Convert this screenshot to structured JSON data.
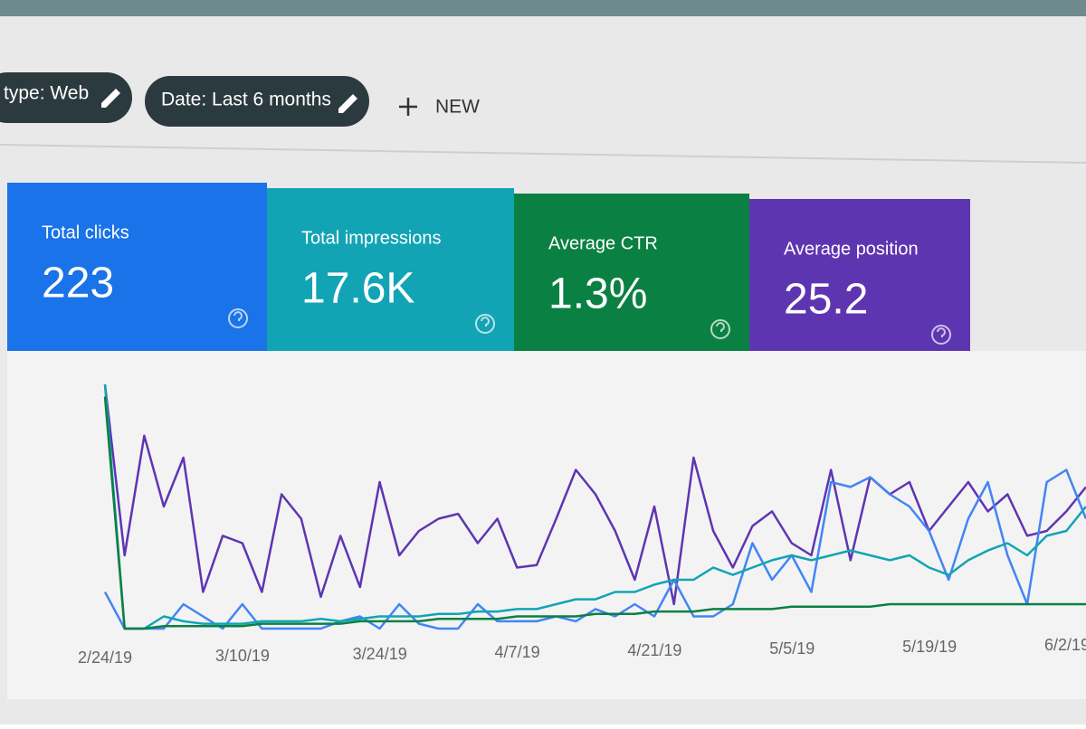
{
  "filters": [
    {
      "label": "type: Web"
    },
    {
      "label": "Date: Last 6 months"
    }
  ],
  "new_button": "NEW",
  "cards": [
    {
      "label": "Total clicks",
      "value": "223",
      "color": "#1a73e8"
    },
    {
      "label": "Total impressions",
      "value": "17.6K",
      "color": "#12a4b4"
    },
    {
      "label": "Average CTR",
      "value": "1.3%",
      "color": "#0b8043"
    },
    {
      "label": "Average position",
      "value": "25.2",
      "color": "#5e35b1"
    }
  ],
  "chart": {
    "type": "line",
    "xticks": [
      "2/24/19",
      "3/10/19",
      "3/24/19",
      "4/7/19",
      "4/21/19",
      "5/5/19",
      "5/19/19",
      "6/2/19"
    ],
    "ylim": [
      0,
      100
    ],
    "series": [
      {
        "color": "#5e35b1",
        "values": [
          100,
          30,
          79,
          50,
          70,
          15,
          38,
          35,
          15,
          55,
          45,
          13,
          38,
          17,
          60,
          30,
          40,
          45,
          47,
          35,
          45,
          25,
          26,
          45,
          65,
          55,
          40,
          20,
          50,
          10,
          70,
          40,
          25,
          42,
          48,
          35,
          30,
          65,
          28,
          62,
          55,
          60,
          40,
          50,
          60,
          48,
          55,
          38,
          40,
          48,
          58
        ]
      },
      {
        "color": "#4285f4",
        "values": [
          15,
          0,
          0,
          0,
          10,
          5,
          0,
          10,
          0,
          0,
          0,
          0,
          3,
          5,
          0,
          10,
          2,
          0,
          0,
          10,
          3,
          3,
          3,
          5,
          3,
          8,
          5,
          10,
          5,
          20,
          5,
          5,
          10,
          35,
          20,
          30,
          15,
          60,
          58,
          62,
          55,
          50,
          40,
          20,
          45,
          60,
          30,
          10,
          60,
          65,
          45
        ]
      },
      {
        "color": "#12a4b4",
        "values": [
          100,
          0,
          0,
          5,
          3,
          2,
          2,
          2,
          3,
          3,
          3,
          4,
          3,
          4,
          5,
          5,
          5,
          6,
          6,
          7,
          7,
          8,
          8,
          10,
          12,
          12,
          15,
          15,
          18,
          20,
          20,
          25,
          22,
          25,
          28,
          30,
          28,
          30,
          32,
          30,
          28,
          30,
          25,
          22,
          28,
          32,
          35,
          30,
          38,
          40,
          50
        ]
      },
      {
        "color": "#0b8043",
        "values": [
          95,
          0,
          0,
          1,
          1,
          1,
          1,
          1,
          2,
          2,
          2,
          2,
          2,
          3,
          3,
          3,
          3,
          4,
          4,
          4,
          4,
          5,
          5,
          5,
          5,
          6,
          6,
          6,
          7,
          7,
          7,
          8,
          8,
          8,
          8,
          9,
          9,
          9,
          9,
          9,
          10,
          10,
          10,
          10,
          10,
          10,
          10,
          10,
          10,
          10,
          10
        ]
      }
    ]
  }
}
